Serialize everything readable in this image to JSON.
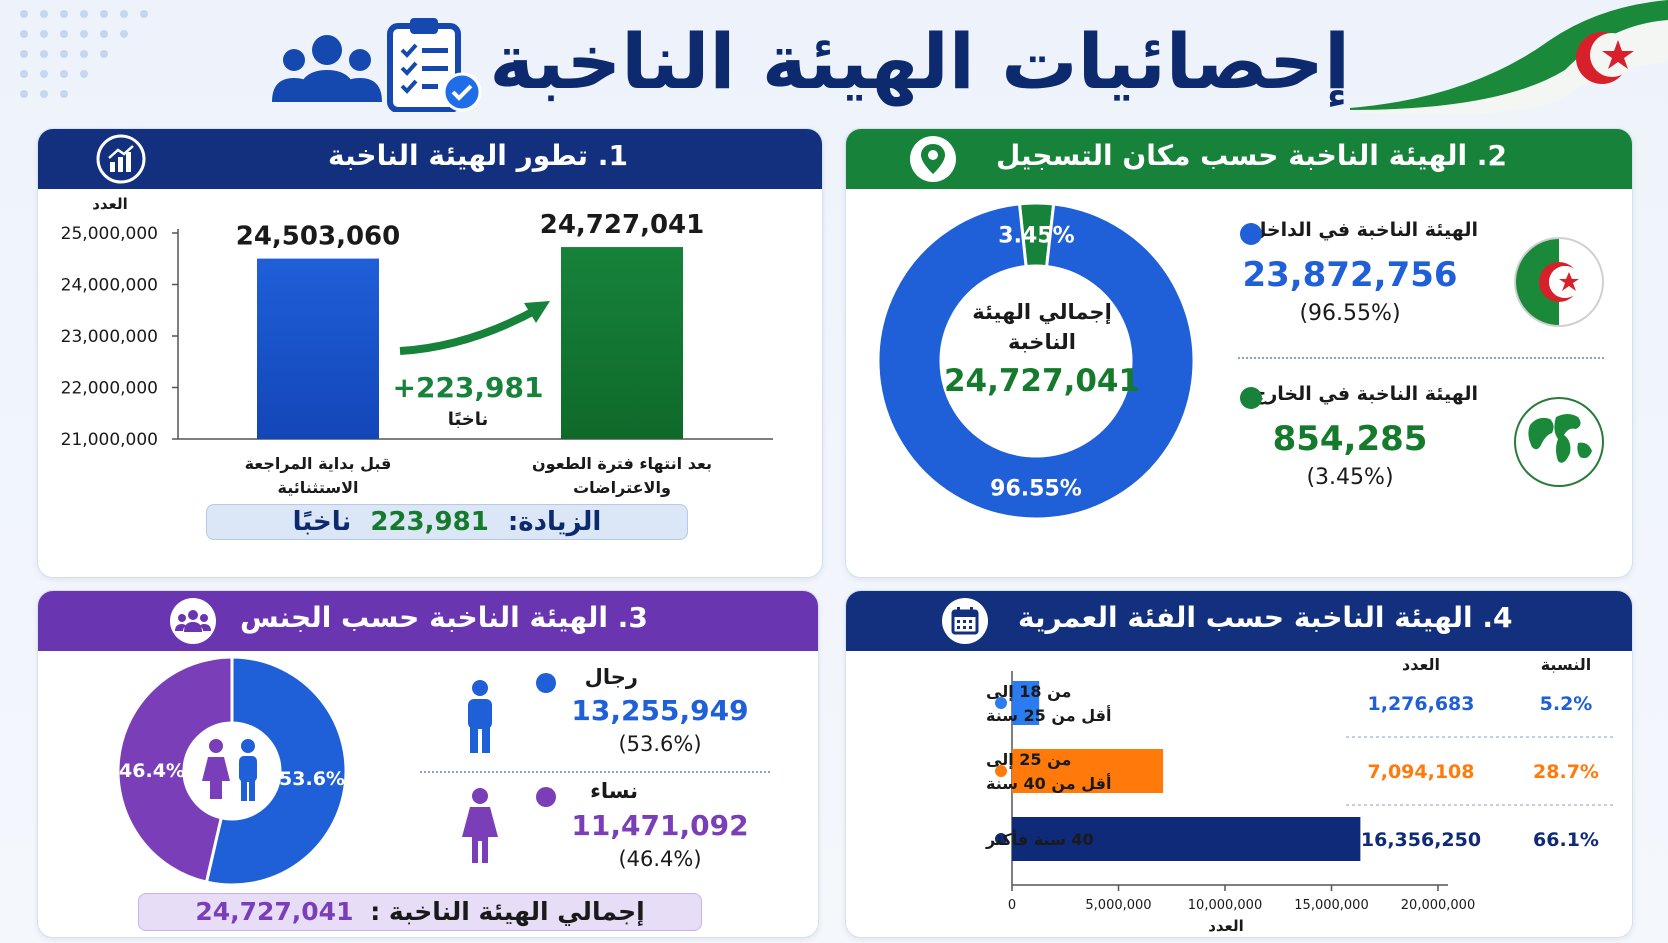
{
  "title": "إحصائيات الهيئة الناخبة",
  "colors": {
    "navy": "#13307e",
    "green": "#16823a",
    "purple": "#6a35b0",
    "blue": "#1f5fd8",
    "orange": "#ff7a0a",
    "darknavy": "#0e2a78"
  },
  "icons": {
    "header_people": "group-people-icon",
    "header_clipboard": "clipboard-check-icon",
    "flag": "algeria-flag-icon",
    "p1": "growth-chart-icon",
    "p2": "location-pin-icon",
    "p3": "people-icon",
    "p4": "calendar-icon"
  },
  "panel1": {
    "title": "1. تطور الهيئة الناخبة",
    "increase_label": "الزيادة:",
    "increase_value": "223,981",
    "increase_unit": "ناخبًا",
    "arrow_value": "+223,981",
    "arrow_unit": "ناخبًا"
  },
  "panel2": {
    "title": "2. الهيئة الناخبة حسب مكان التسجيل",
    "center_label": "إجمالي الهيئة الناخبة",
    "center_value": "24,727,041",
    "inside": {
      "label": "الهيئة الناخبة في الداخل",
      "value": "23,872,756",
      "pct": "(96.55%)"
    },
    "outside": {
      "label": "الهيئة الناخبة في الخارج",
      "value": "854,285",
      "pct": "(3.45%)"
    }
  },
  "panel3": {
    "title": "3. الهيئة الناخبة حسب الجنس",
    "men": {
      "label": "رجال",
      "value": "13,255,949",
      "pct": "(53.6%)"
    },
    "women": {
      "label": "نساء",
      "value": "11,471,092",
      "pct": "(46.4%)"
    },
    "total_label": "إجمالي الهيئة الناخبة :",
    "total_value": "24,727,041"
  },
  "panel4": {
    "title": "4. الهيئة الناخبة حسب الفئة العمرية",
    "col_count": "العدد",
    "col_pct": "النسبة"
  },
  "chart_data": [
    {
      "type": "bar",
      "title": "1. تطور الهيئة الناخبة",
      "ylabel": "العدد",
      "xlabel": "",
      "ylim": [
        21000000,
        25000000
      ],
      "yticks": [
        "21,000,000",
        "22,000,000",
        "23,000,000",
        "24,000,000",
        "25,000,000"
      ],
      "categories": [
        "قبل بداية المراجعة الاستثنائية",
        "بعد انتهاء فترة الطعون والاعتراضات"
      ],
      "values": [
        24503060,
        24727041
      ],
      "labels": [
        "24,503,060",
        "24,727,041"
      ],
      "colors": [
        "#1f5fd8",
        "#16823a"
      ],
      "grid": false
    },
    {
      "type": "pie",
      "title": "2. الهيئة الناخبة حسب مكان التسجيل",
      "categories": [
        "الهيئة الناخبة في الداخل",
        "الهيئة الناخبة في الخارج"
      ],
      "values": [
        96.55,
        3.45
      ],
      "labels": [
        "96.55%",
        "3.45%"
      ],
      "colors": [
        "#1f5fd8",
        "#16823a"
      ]
    },
    {
      "type": "pie",
      "title": "3. الهيئة الناخبة حسب الجنس",
      "categories": [
        "رجال",
        "نساء"
      ],
      "values": [
        53.6,
        46.4
      ],
      "labels": [
        "53.6%",
        "46.4%"
      ],
      "colors": [
        "#1f5fd8",
        "#7a3fb8"
      ]
    },
    {
      "type": "bar",
      "orientation": "horizontal",
      "title": "4. الهيئة الناخبة حسب الفئة العمرية",
      "xlabel": "العدد",
      "xlim": [
        0,
        20000000
      ],
      "xticks": [
        "0",
        "5,000,000",
        "10,000,000",
        "15,000,000",
        "20,000,000"
      ],
      "categories": [
        "من 18 إلى أقل من 25 سنة",
        "من 25 إلى أقل من 40 سنة",
        "40 سنة فأكثر"
      ],
      "values": [
        1276683,
        7094108,
        16356250
      ],
      "labels": [
        "1,276,683",
        "7,094,108",
        "16,356,250"
      ],
      "percents": [
        "5.2%",
        "28.7%",
        "66.1%"
      ],
      "colors": [
        "#2a7cf0",
        "#ff7a0a",
        "#0e2a78"
      ]
    }
  ]
}
